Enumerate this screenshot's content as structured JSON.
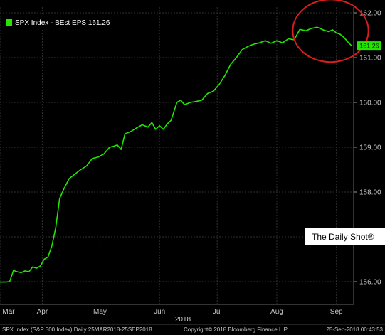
{
  "chart_data": {
    "type": "line",
    "title": "",
    "xlabel": "",
    "ylabel": "",
    "ylim": [
      155.8,
      162.1
    ],
    "yticks": [
      156.0,
      157.0,
      158.0,
      159.0,
      160.0,
      161.0,
      162.0
    ],
    "ytick_labels": [
      "156.00",
      "157.00",
      "158.00",
      "159.00",
      "160.00",
      "161.00",
      "162.00"
    ],
    "x_range": [
      "2018-03-25",
      "2018-09-25"
    ],
    "x_month_labels": [
      {
        "label": "Mar",
        "date": "2018-03-25"
      },
      {
        "label": "Apr",
        "date": "2018-04-16"
      },
      {
        "label": "May",
        "date": "2018-05-16"
      },
      {
        "label": "Jun",
        "date": "2018-06-16"
      },
      {
        "label": "Jul",
        "date": "2018-07-16"
      },
      {
        "label": "Aug",
        "date": "2018-08-16"
      },
      {
        "label": "Sep",
        "date": "2018-09-16"
      }
    ],
    "year_label": "2018",
    "grid": true,
    "legend_position": "top-left",
    "series": [
      {
        "name": "SPX Index - BEst EPS 161.26",
        "color": "#22e600",
        "points": [
          [
            "2018-03-25",
            155.99
          ],
          [
            "2018-03-28",
            155.99
          ],
          [
            "2018-03-30",
            156.0
          ],
          [
            "2018-04-01",
            156.25
          ],
          [
            "2018-04-03",
            156.22
          ],
          [
            "2018-04-05",
            156.2
          ],
          [
            "2018-04-07",
            156.24
          ],
          [
            "2018-04-09",
            156.22
          ],
          [
            "2018-04-11",
            156.33
          ],
          [
            "2018-04-13",
            156.3
          ],
          [
            "2018-04-15",
            156.35
          ],
          [
            "2018-04-17",
            156.5
          ],
          [
            "2018-04-19",
            156.55
          ],
          [
            "2018-04-21",
            156.8
          ],
          [
            "2018-04-23",
            157.2
          ],
          [
            "2018-04-25",
            157.85
          ],
          [
            "2018-04-27",
            158.05
          ],
          [
            "2018-04-30",
            158.3
          ],
          [
            "2018-05-03",
            158.4
          ],
          [
            "2018-05-06",
            158.5
          ],
          [
            "2018-05-09",
            158.58
          ],
          [
            "2018-05-12",
            158.75
          ],
          [
            "2018-05-15",
            158.78
          ],
          [
            "2018-05-18",
            158.85
          ],
          [
            "2018-05-21",
            159.0
          ],
          [
            "2018-05-23",
            159.02
          ],
          [
            "2018-05-25",
            159.05
          ],
          [
            "2018-05-27",
            158.95
          ],
          [
            "2018-05-29",
            159.3
          ],
          [
            "2018-06-01",
            159.35
          ],
          [
            "2018-06-04",
            159.43
          ],
          [
            "2018-06-07",
            159.5
          ],
          [
            "2018-06-10",
            159.45
          ],
          [
            "2018-06-12",
            159.55
          ],
          [
            "2018-06-14",
            159.4
          ],
          [
            "2018-06-16",
            159.48
          ],
          [
            "2018-06-18",
            159.4
          ],
          [
            "2018-06-20",
            159.52
          ],
          [
            "2018-06-22",
            159.6
          ],
          [
            "2018-06-25",
            160.0
          ],
          [
            "2018-06-27",
            160.05
          ],
          [
            "2018-06-29",
            159.95
          ],
          [
            "2018-07-02",
            160.0
          ],
          [
            "2018-07-05",
            160.02
          ],
          [
            "2018-07-08",
            160.05
          ],
          [
            "2018-07-11",
            160.2
          ],
          [
            "2018-07-14",
            160.25
          ],
          [
            "2018-07-17",
            160.4
          ],
          [
            "2018-07-20",
            160.6
          ],
          [
            "2018-07-23",
            160.85
          ],
          [
            "2018-07-26",
            161.0
          ],
          [
            "2018-07-29",
            161.18
          ],
          [
            "2018-08-01",
            161.25
          ],
          [
            "2018-08-04",
            161.3
          ],
          [
            "2018-08-07",
            161.33
          ],
          [
            "2018-08-10",
            161.38
          ],
          [
            "2018-08-13",
            161.32
          ],
          [
            "2018-08-16",
            161.38
          ],
          [
            "2018-08-19",
            161.33
          ],
          [
            "2018-08-22",
            161.42
          ],
          [
            "2018-08-25",
            161.4
          ],
          [
            "2018-08-28",
            161.63
          ],
          [
            "2018-08-31",
            161.6
          ],
          [
            "2018-09-03",
            161.65
          ],
          [
            "2018-09-06",
            161.68
          ],
          [
            "2018-09-09",
            161.62
          ],
          [
            "2018-09-12",
            161.58
          ],
          [
            "2018-09-14",
            161.62
          ],
          [
            "2018-09-16",
            161.55
          ],
          [
            "2018-09-18",
            161.52
          ],
          [
            "2018-09-20",
            161.45
          ],
          [
            "2018-09-22",
            161.35
          ],
          [
            "2018-09-24",
            161.26
          ]
        ]
      }
    ],
    "last_value_label": "161.26",
    "annotations": [
      {
        "type": "ellipse",
        "color": "#d81e1e",
        "around": [
          "2018-08-28",
          "2018-09-26"
        ]
      },
      {
        "type": "text-box",
        "text": "The Daily Shot®"
      }
    ]
  },
  "footer": {
    "left": "SPX Index (S&P 500 Index)  Daily 25MAR2018-25SEP2018",
    "center": "Copyright© 2018 Bloomberg Finance L.P.",
    "right": "25-Sep-2018 00:43:53"
  },
  "colors": {
    "background": "#000000",
    "grid": "#333333",
    "line": "#22e600",
    "highlight_ellipse": "#d81e1e"
  }
}
